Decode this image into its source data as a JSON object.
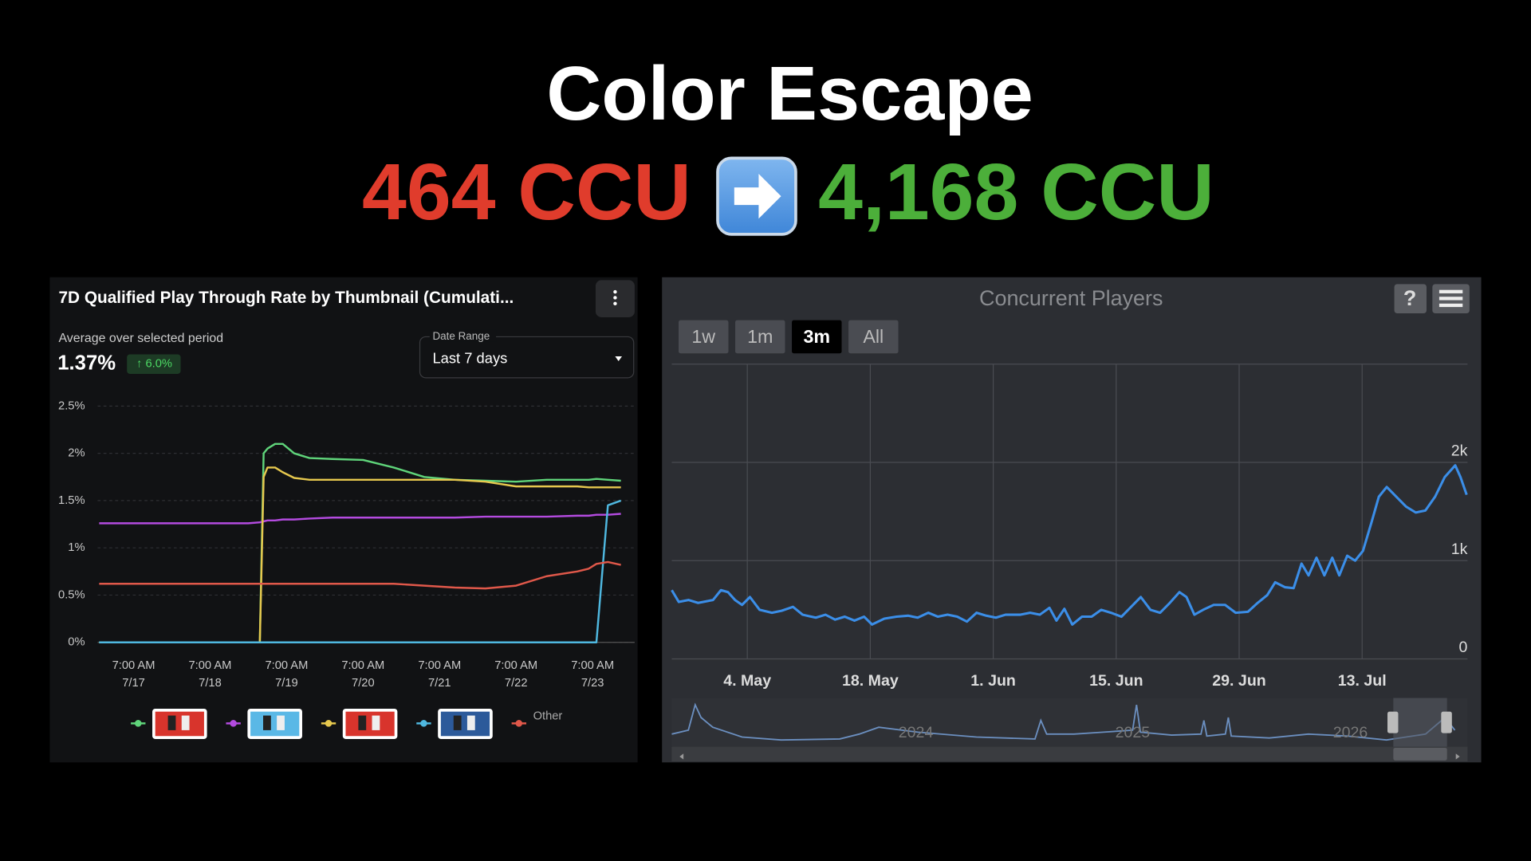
{
  "header": {
    "title": "Color Escape",
    "before": "464 CCU",
    "after": "4,168 CCU"
  },
  "chart_data": [
    {
      "type": "line",
      "title": "7D Qualified Play Through Rate by Thumbnail (Cumulati...",
      "summary_label": "Average over selected period",
      "summary_value": "1.37%",
      "change": "↑ 6.0%",
      "dropdown_label": "Date Range",
      "dropdown_value": "Last 7 days",
      "x": [
        -0.45,
        0,
        0.5,
        1,
        1.5,
        1.65,
        1.7,
        1.75,
        1.85,
        1.95,
        2.1,
        2.3,
        2.6,
        3,
        3.4,
        3.8,
        4.2,
        4.6,
        5,
        5.4,
        5.8,
        5.95,
        6.05,
        6.2,
        6.37
      ],
      "series": [
        {
          "name": null,
          "color": "#5fd47a",
          "values": [
            0,
            0,
            0,
            0,
            0,
            0,
            2.0,
            2.05,
            2.1,
            2.1,
            2.0,
            1.95,
            1.94,
            1.93,
            1.85,
            1.75,
            1.72,
            1.71,
            1.7,
            1.72,
            1.72,
            1.72,
            1.73,
            1.72,
            1.71
          ]
        },
        {
          "name": null,
          "color": "#b44be0",
          "values": [
            1.26,
            1.26,
            1.26,
            1.26,
            1.26,
            1.27,
            1.28,
            1.29,
            1.29,
            1.3,
            1.3,
            1.31,
            1.32,
            1.32,
            1.32,
            1.32,
            1.32,
            1.33,
            1.33,
            1.33,
            1.34,
            1.34,
            1.35,
            1.35,
            1.36
          ]
        },
        {
          "name": null,
          "color": "#e6c84e",
          "values": [
            0,
            0,
            0,
            0,
            0,
            0,
            1.75,
            1.85,
            1.85,
            1.8,
            1.74,
            1.72,
            1.72,
            1.72,
            1.72,
            1.72,
            1.72,
            1.7,
            1.65,
            1.65,
            1.65,
            1.64,
            1.64,
            1.64,
            1.64
          ]
        },
        {
          "name": null,
          "color": "#4fb8e0",
          "values": [
            0,
            0,
            0,
            0,
            0,
            0,
            0,
            0,
            0,
            0,
            0,
            0,
            0,
            0,
            0,
            0,
            0,
            0,
            0,
            0,
            0,
            0,
            0,
            1.45,
            1.5
          ]
        },
        {
          "name": "Other",
          "color": "#e0584a",
          "values": [
            0.62,
            0.62,
            0.62,
            0.62,
            0.62,
            0.62,
            0.62,
            0.62,
            0.62,
            0.62,
            0.62,
            0.62,
            0.62,
            0.62,
            0.62,
            0.6,
            0.58,
            0.57,
            0.6,
            0.7,
            0.75,
            0.78,
            0.83,
            0.85,
            0.82
          ]
        }
      ],
      "xlim": [
        -0.47,
        6.55
      ],
      "xticks": [
        {
          "value": 0,
          "label": [
            "7:00 AM",
            "7/17"
          ]
        },
        {
          "value": 1,
          "label": [
            "7:00 AM",
            "7/18"
          ]
        },
        {
          "value": 2,
          "label": [
            "7:00 AM",
            "7/19"
          ]
        },
        {
          "value": 3,
          "label": [
            "7:00 AM",
            "7/20"
          ]
        },
        {
          "value": 4,
          "label": [
            "7:00 AM",
            "7/21"
          ]
        },
        {
          "value": 5,
          "label": [
            "7:00 AM",
            "7/22"
          ]
        },
        {
          "value": 6,
          "label": [
            "7:00 AM",
            "7/23"
          ]
        }
      ],
      "ylim": [
        0,
        2.5
      ],
      "yticks": [
        {
          "value": 0,
          "label": "0%"
        },
        {
          "value": 0.5,
          "label": "0.5%"
        },
        {
          "value": 1,
          "label": "1%"
        },
        {
          "value": 1.5,
          "label": "1.5%"
        },
        {
          "value": 2,
          "label": "2%"
        },
        {
          "value": 2.5,
          "label": "2.5%"
        }
      ],
      "grid": true,
      "legend": "bottom"
    },
    {
      "type": "line",
      "title": "Concurrent Players",
      "range_buttons": [
        "1w",
        "1m",
        "3m",
        "All"
      ],
      "selected_range": "3m",
      "x": [
        -8.6,
        -7.8,
        -6.7,
        -5.6,
        -3.9,
        -3.0,
        -2.2,
        -1.4,
        -0.6,
        0.3,
        1.4,
        2.8,
        3.9,
        5.2,
        6.3,
        7.8,
        8.9,
        10,
        11.1,
        12.2,
        13.3,
        14.2,
        15.6,
        17,
        18.3,
        19.4,
        20.6,
        21.7,
        22.8,
        23.9,
        25,
        26.1,
        27.2,
        28.3,
        29.4,
        31.1,
        32.2,
        33.3,
        34.4,
        35.2,
        36.1,
        37,
        38.1,
        39.2,
        40.3,
        41.4,
        42.6,
        43.7,
        44.8,
        45.9,
        47,
        48.1,
        49.2,
        50,
        50.9,
        51.9,
        53.1,
        54.4,
        55.6,
        57,
        58.1,
        59.2,
        60.1,
        61.2,
        62.2,
        63.1,
        63.9,
        64.8,
        65.7,
        66.6,
        67.4,
        68.3,
        69.2,
        70.1,
        71.1,
        71.9,
        72.8,
        73.9,
        75,
        76.1,
        77.2,
        78.3,
        79.4,
        80.6,
        81.2,
        81.9
      ],
      "series": [
        {
          "name": null,
          "color": "#3b8ee8",
          "values": [
            700,
            580,
            600,
            570,
            600,
            700,
            680,
            600,
            550,
            630,
            500,
            470,
            490,
            530,
            450,
            420,
            450,
            400,
            430,
            390,
            430,
            350,
            410,
            430,
            440,
            420,
            470,
            430,
            450,
            430,
            380,
            470,
            440,
            420,
            450,
            450,
            470,
            450,
            520,
            390,
            510,
            350,
            430,
            430,
            500,
            470,
            430,
            530,
            630,
            500,
            470,
            570,
            680,
            630,
            450,
            500,
            550,
            550,
            470,
            480,
            570,
            650,
            780,
            730,
            720,
            970,
            850,
            1030,
            850,
            1030,
            850,
            1050,
            1000,
            1100,
            1400,
            1650,
            1750,
            1650,
            1550,
            1490,
            1510,
            1650,
            1850,
            1970,
            1850,
            1670
          ]
        }
      ],
      "xlim": [
        -8.6,
        82
      ],
      "xticks": [
        {
          "value": 0,
          "label": "4. May"
        },
        {
          "value": 14,
          "label": "18. May"
        },
        {
          "value": 28,
          "label": "1. Jun"
        },
        {
          "value": 42,
          "label": "15. Jun"
        },
        {
          "value": 56,
          "label": "29. Jun"
        },
        {
          "value": 70,
          "label": "13. Jul"
        }
      ],
      "ylim": [
        0,
        3000
      ],
      "yticks": [
        0,
        {
          "value": 1000,
          "label": "1k"
        },
        {
          "value": 2000,
          "label": "2k"
        }
      ],
      "navigator_labels": [
        "2024",
        "2025",
        "2026"
      ],
      "grid": true
    }
  ]
}
